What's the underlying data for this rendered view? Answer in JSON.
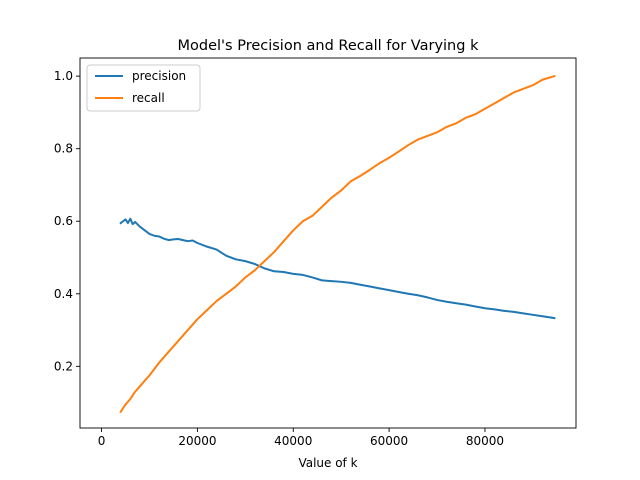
{
  "chart_data": {
    "type": "line",
    "title": "Model's Precision and Recall for Varying k",
    "xlabel": "Value of k",
    "ylabel": "",
    "xlim": [
      -4500,
      99000
    ],
    "ylim": [
      0.03,
      1.05
    ],
    "xticks": [
      0,
      20000,
      40000,
      60000,
      80000
    ],
    "xtick_labels": [
      "0",
      "20000",
      "40000",
      "60000",
      "80000"
    ],
    "yticks": [
      0.2,
      0.4,
      0.6,
      0.8,
      1.0
    ],
    "ytick_labels": [
      "0.2",
      "0.4",
      "0.6",
      "0.8",
      "1.0"
    ],
    "grid": false,
    "legend_position": "top-left",
    "series": [
      {
        "name": "precision",
        "color": "#1f77b4",
        "x": [
          4000,
          4500,
          5000,
          5500,
          6000,
          6500,
          7000,
          8000,
          9000,
          10000,
          11000,
          12000,
          13000,
          14000,
          15000,
          16000,
          17000,
          18000,
          19000,
          20000,
          22000,
          24000,
          26000,
          28000,
          30000,
          32000,
          34000,
          36000,
          38000,
          40000,
          42000,
          44000,
          46000,
          48000,
          50000,
          52000,
          54000,
          56000,
          58000,
          60000,
          62000,
          64000,
          66000,
          68000,
          70000,
          72000,
          74000,
          76000,
          78000,
          80000,
          82000,
          84000,
          86000,
          88000,
          90000,
          92000,
          94500
        ],
        "y": [
          0.595,
          0.6,
          0.605,
          0.595,
          0.607,
          0.592,
          0.598,
          0.585,
          0.575,
          0.565,
          0.56,
          0.558,
          0.552,
          0.548,
          0.55,
          0.551,
          0.548,
          0.545,
          0.547,
          0.54,
          0.53,
          0.522,
          0.505,
          0.495,
          0.49,
          0.482,
          0.47,
          0.462,
          0.46,
          0.455,
          0.452,
          0.445,
          0.437,
          0.435,
          0.433,
          0.43,
          0.425,
          0.42,
          0.415,
          0.41,
          0.405,
          0.4,
          0.396,
          0.39,
          0.383,
          0.378,
          0.374,
          0.37,
          0.365,
          0.36,
          0.357,
          0.353,
          0.35,
          0.346,
          0.342,
          0.338,
          0.333
        ]
      },
      {
        "name": "recall",
        "color": "#ff7f0e",
        "x": [
          4000,
          5000,
          6000,
          7000,
          8000,
          9000,
          10000,
          12000,
          14000,
          16000,
          18000,
          20000,
          22000,
          24000,
          26000,
          28000,
          30000,
          32000,
          34000,
          36000,
          38000,
          40000,
          42000,
          44000,
          46000,
          48000,
          50000,
          52000,
          54000,
          56000,
          58000,
          60000,
          62000,
          64000,
          66000,
          68000,
          70000,
          72000,
          74000,
          76000,
          78000,
          80000,
          82000,
          84000,
          86000,
          88000,
          90000,
          92000,
          94500
        ],
        "y": [
          0.075,
          0.095,
          0.11,
          0.13,
          0.145,
          0.16,
          0.175,
          0.21,
          0.24,
          0.27,
          0.3,
          0.33,
          0.355,
          0.38,
          0.4,
          0.42,
          0.445,
          0.465,
          0.49,
          0.515,
          0.545,
          0.575,
          0.6,
          0.615,
          0.64,
          0.665,
          0.685,
          0.71,
          0.725,
          0.742,
          0.76,
          0.775,
          0.792,
          0.81,
          0.825,
          0.835,
          0.845,
          0.86,
          0.87,
          0.885,
          0.895,
          0.91,
          0.925,
          0.94,
          0.955,
          0.965,
          0.975,
          0.99,
          1.0
        ]
      }
    ]
  }
}
